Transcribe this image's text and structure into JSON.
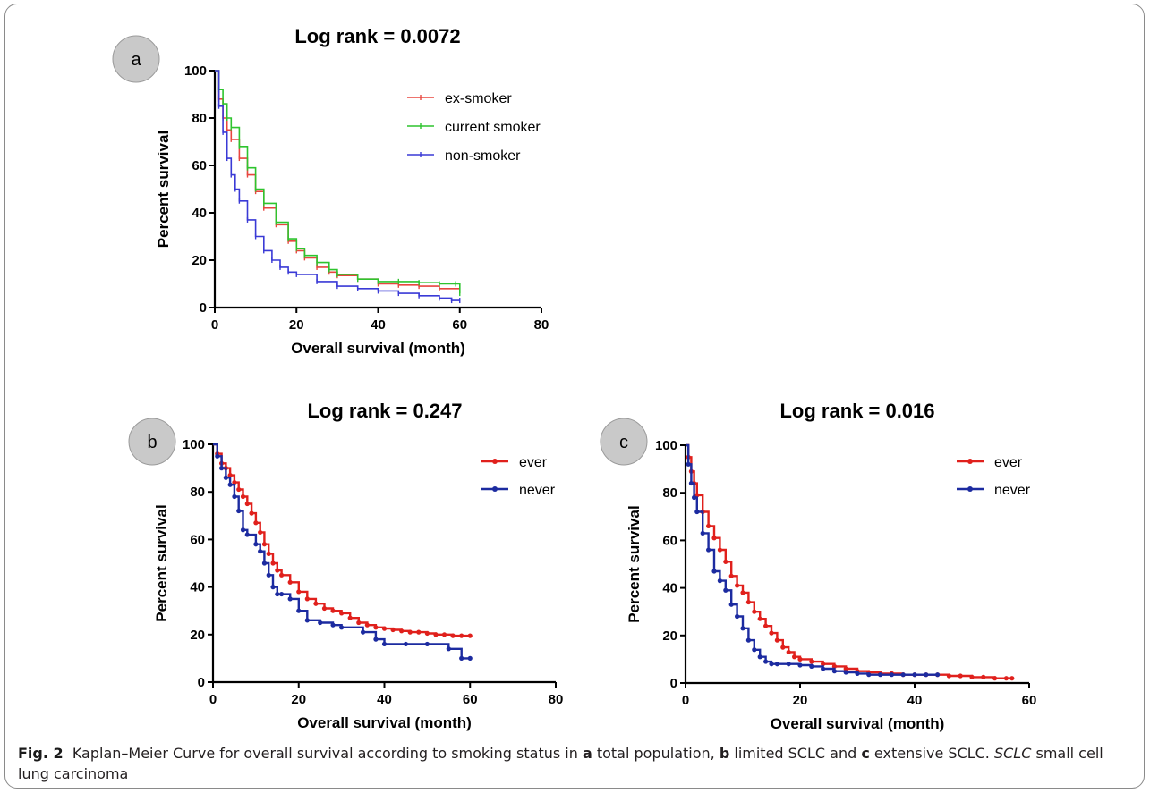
{
  "chart_data": [
    {
      "id": "a",
      "type": "line",
      "panel_label": "a",
      "title": "Log rank = 0.0072",
      "xlabel": "Overall survival (month)",
      "ylabel": "Percent survival",
      "xlim": [
        0,
        80
      ],
      "ylim": [
        0,
        100
      ],
      "xticks": [
        0,
        20,
        40,
        60,
        80
      ],
      "yticks": [
        0,
        20,
        40,
        60,
        80,
        100
      ],
      "legend_position": "top-right",
      "series": [
        {
          "name": "ex-smoker",
          "color": "#e8463f",
          "marker": "tick",
          "x": [
            0,
            1,
            2,
            3,
            4,
            6,
            8,
            10,
            12,
            15,
            18,
            20,
            22,
            25,
            28,
            30,
            35,
            40,
            45,
            50,
            55,
            60
          ],
          "y": [
            100,
            88,
            80,
            75,
            71,
            63,
            56,
            49,
            42,
            35,
            28,
            24,
            21,
            17,
            15,
            13.5,
            12,
            10,
            9.5,
            9,
            8,
            8
          ]
        },
        {
          "name": "current smoker",
          "color": "#2ec42e",
          "marker": "tick",
          "x": [
            0,
            1,
            2,
            3,
            4,
            6,
            8,
            10,
            12,
            15,
            18,
            20,
            22,
            25,
            28,
            30,
            35,
            40,
            45,
            50,
            55,
            59,
            60
          ],
          "y": [
            100,
            92,
            86,
            80,
            76,
            68,
            59,
            50,
            44,
            36,
            29,
            25,
            22,
            19,
            16,
            14,
            12,
            11,
            11,
            10.5,
            10,
            10,
            6
          ]
        },
        {
          "name": "non-smoker",
          "color": "#3a3ad6",
          "marker": "tick",
          "x": [
            0,
            1,
            2,
            3,
            4,
            5,
            6,
            8,
            10,
            12,
            14,
            16,
            18,
            20,
            25,
            30,
            35,
            40,
            45,
            50,
            55,
            58,
            60
          ],
          "y": [
            100,
            85,
            74,
            63,
            56,
            50,
            45,
            37,
            30,
            24,
            20,
            17,
            15,
            14,
            11,
            9,
            8,
            7,
            6,
            5,
            4,
            3,
            3
          ]
        }
      ]
    },
    {
      "id": "b",
      "type": "line",
      "panel_label": "b",
      "title": "Log rank = 0.247",
      "xlabel": "Overall survival (month)",
      "ylabel": "Percent survival",
      "xlim": [
        0,
        80
      ],
      "ylim": [
        0,
        100
      ],
      "xticks": [
        0,
        20,
        40,
        60,
        80
      ],
      "yticks": [
        0,
        20,
        40,
        60,
        80,
        100
      ],
      "legend_position": "top-right",
      "series": [
        {
          "name": "ever",
          "color": "#e0201c",
          "marker": "dot",
          "x": [
            0,
            1,
            2,
            3,
            4,
            5,
            6,
            7,
            8,
            9,
            10,
            11,
            12,
            13,
            14,
            15,
            16,
            18,
            20,
            22,
            24,
            26,
            28,
            30,
            32,
            34,
            36,
            38,
            40,
            42,
            44,
            46,
            48,
            50,
            52,
            54,
            56,
            58,
            60
          ],
          "y": [
            100,
            96,
            92,
            90,
            87,
            84,
            81,
            78,
            75,
            71,
            67,
            63,
            58,
            54,
            50,
            47,
            45,
            42,
            38,
            35,
            33,
            31,
            30,
            29,
            27,
            25,
            24,
            23,
            22.5,
            22,
            21.5,
            21,
            21,
            20.5,
            20,
            20,
            19.5,
            19.5,
            19.5
          ]
        },
        {
          "name": "never",
          "color": "#1c2ba0",
          "marker": "dot",
          "x": [
            0,
            1,
            2,
            3,
            4,
            5,
            6,
            7,
            8,
            10,
            11,
            12,
            13,
            14,
            15,
            16,
            18,
            20,
            22,
            25,
            28,
            30,
            35,
            38,
            40,
            45,
            50,
            55,
            58,
            60
          ],
          "y": [
            100,
            95,
            90,
            86,
            83,
            78,
            72,
            64,
            62,
            58,
            55,
            50,
            45,
            40,
            37,
            37,
            35,
            30,
            26,
            25,
            24,
            23,
            21,
            18,
            16,
            16,
            16,
            14,
            10,
            10
          ]
        }
      ]
    },
    {
      "id": "c",
      "type": "line",
      "panel_label": "c",
      "title": "Log rank = 0.016",
      "xlabel": "Overall survival (month)",
      "ylabel": "Percent survival",
      "xlim": [
        0,
        60
      ],
      "ylim": [
        0,
        100
      ],
      "xticks": [
        0,
        20,
        40,
        60
      ],
      "yticks": [
        0,
        20,
        40,
        60,
        80,
        100
      ],
      "legend_position": "top-right",
      "series": [
        {
          "name": "ever",
          "color": "#e0201c",
          "marker": "dot",
          "x": [
            0,
            0.5,
            1,
            1.5,
            2,
            3,
            4,
            5,
            6,
            7,
            8,
            9,
            10,
            11,
            12,
            13,
            14,
            15,
            16,
            17,
            18,
            19,
            20,
            22,
            24,
            26,
            28,
            30,
            32,
            34,
            36,
            38,
            40,
            42,
            44,
            46,
            48,
            50,
            52,
            54,
            56,
            57
          ],
          "y": [
            100,
            95,
            89,
            84,
            79,
            72,
            66,
            61,
            56,
            51,
            45,
            41,
            38,
            34,
            30,
            27,
            24,
            21,
            18,
            15,
            13,
            11,
            10,
            9,
            8,
            7,
            6,
            5,
            4.5,
            4,
            4,
            3.5,
            3.5,
            3.5,
            3.5,
            3,
            3,
            2.5,
            2.5,
            2,
            2,
            2
          ]
        },
        {
          "name": "never",
          "color": "#1c2ba0",
          "marker": "dot",
          "x": [
            0,
            0.5,
            1,
            1.5,
            2,
            3,
            4,
            5,
            6,
            7,
            8,
            9,
            10,
            11,
            12,
            13,
            14,
            15,
            16,
            18,
            20,
            22,
            24,
            26,
            28,
            30,
            32,
            34,
            36,
            38,
            40,
            42,
            44
          ],
          "y": [
            100,
            92,
            84,
            78,
            72,
            63,
            56,
            47,
            43,
            39,
            33,
            28,
            23,
            18,
            14,
            11,
            9,
            8,
            8,
            8,
            7.5,
            7,
            6,
            5,
            4.5,
            4,
            3.5,
            3.5,
            3.5,
            3.5,
            3.5,
            3.5,
            3.5
          ]
        }
      ]
    }
  ],
  "caption": {
    "fig_label": "Fig. 2",
    "text_1": "Kaplan–Meier Curve for overall survival according to smoking status in ",
    "a": "a",
    "text_2": " total population, ",
    "b": "b",
    "text_3": " limited SCLC and ",
    "c": "c",
    "text_4": " extensive SCLC. ",
    "abbr": "SCLC",
    "text_5": " small cell lung carcinoma"
  }
}
